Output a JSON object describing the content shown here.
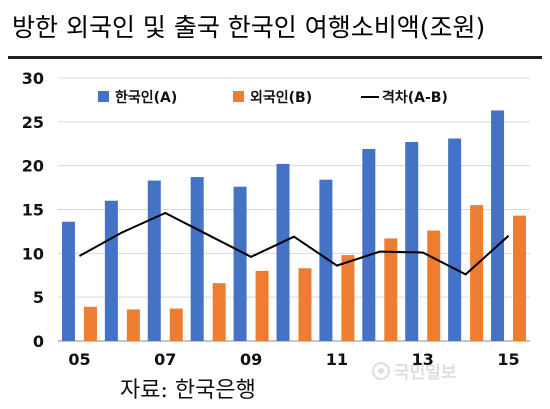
{
  "chart_data": {
    "type": "bar",
    "title": "방한 외국인 및 출국 한국인 여행소비액(조원)",
    "ylim": [
      0,
      30
    ],
    "yticks": [
      "0",
      "5",
      "10",
      "15",
      "20",
      "25",
      "30"
    ],
    "x": [
      "05",
      "06",
      "07",
      "08",
      "09",
      "10",
      "11",
      "12",
      "13",
      "14",
      "15"
    ],
    "xtick_labels": [
      "05",
      "",
      "07",
      "",
      "09",
      "",
      "11",
      "",
      "13",
      "",
      "15"
    ],
    "grid": true,
    "legend_position": "top",
    "series": [
      {
        "name": "한국인(A)",
        "type": "bar",
        "color": "#4472C4",
        "values": [
          13.6,
          16.0,
          18.3,
          18.7,
          17.6,
          20.2,
          18.4,
          21.9,
          22.7,
          23.1,
          26.3
        ]
      },
      {
        "name": "외국인(B)",
        "type": "bar",
        "color": "#ED7D31",
        "values": [
          3.9,
          3.6,
          3.7,
          6.6,
          8.0,
          8.3,
          9.8,
          11.7,
          12.6,
          15.5,
          14.3
        ]
      },
      {
        "name": "격차(A-B)",
        "type": "line",
        "color": "#000000",
        "values": [
          9.7,
          12.4,
          14.6,
          12.1,
          9.6,
          11.9,
          8.6,
          10.2,
          10.1,
          7.6,
          12.0
        ]
      }
    ]
  },
  "source": "자료:  한국은행",
  "watermark": "국민일보"
}
